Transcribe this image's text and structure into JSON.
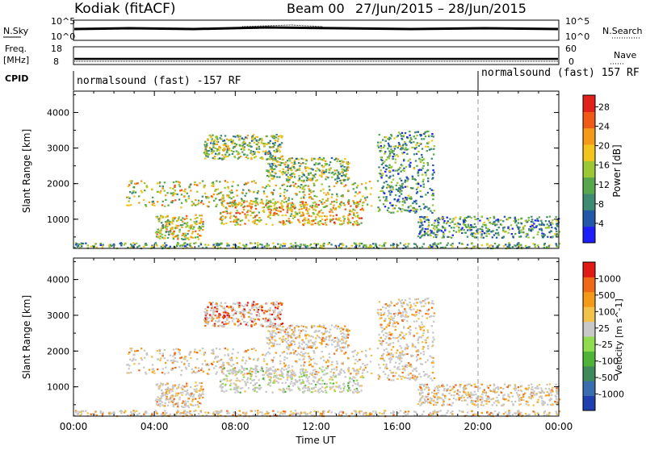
{
  "header": {
    "station": "Kodiak (fitACF)",
    "beam": "Beam 00",
    "date_range": "27/Jun/2015 – 28/Jun/2015"
  },
  "top_panels": {
    "nsky_label": "N.Sky",
    "nsky_ticks": [
      "10^5",
      "10^0"
    ],
    "nsearch_label": "N.Search",
    "nsearch_ticks": [
      "10^5",
      "10^0"
    ],
    "freq_label_1": "Freq.",
    "freq_label_2": "[MHz]",
    "freq_ticks": [
      "18",
      "8"
    ],
    "nave_label": "Nave",
    "nave_ticks": [
      "60",
      "0"
    ],
    "cpid_label": "CPID",
    "cpid_segments": [
      {
        "text": "normalsound (fast) -157 RF",
        "start_hour": 0
      },
      {
        "text": "normalsound (fast) 157 RF",
        "start_hour": 20
      }
    ]
  },
  "chart_data": [
    {
      "type": "heatmap",
      "title": "",
      "xlabel": "Time UT",
      "ylabel": "Slant Range [km]",
      "x_ticks": [
        "00:00",
        "04:00",
        "08:00",
        "12:00",
        "16:00",
        "20:00",
        "00:00"
      ],
      "xlim_hours": [
        0,
        24
      ],
      "ylim_km": [
        180,
        4600
      ],
      "y_ticks": [
        1000,
        2000,
        3000,
        4000
      ],
      "colorbar": {
        "label": "Power [dB]",
        "ticks": [
          "4",
          "8",
          "12",
          "16",
          "20",
          "24",
          "28"
        ],
        "range": [
          0,
          30
        ],
        "colors": [
          "#1e1efa",
          "#2457a8",
          "#3f8a72",
          "#58a64e",
          "#9bc833",
          "#f2c51e",
          "#f39a1b",
          "#ef5a17",
          "#e0201a"
        ]
      },
      "scatter_regions": [
        {
          "t0": 2.6,
          "t1": 14.7,
          "r0": 1350,
          "r1": 2100,
          "level": 0.55
        },
        {
          "t0": 7.2,
          "t1": 14.3,
          "r0": 850,
          "r1": 1550,
          "level": 0.65
        },
        {
          "t0": 6.4,
          "t1": 10.3,
          "r0": 2700,
          "r1": 3400,
          "level": 0.45
        },
        {
          "t0": 9.5,
          "t1": 13.6,
          "r0": 2100,
          "r1": 2750,
          "level": 0.45
        },
        {
          "t0": 4.0,
          "t1": 6.4,
          "r0": 450,
          "r1": 1150,
          "level": 0.55
        },
        {
          "t0": 15.0,
          "t1": 17.8,
          "r0": 1200,
          "r1": 3500,
          "level": 0.3
        },
        {
          "t0": 17.0,
          "t1": 24.0,
          "r0": 500,
          "r1": 1100,
          "level": 0.3
        },
        {
          "t0": 0.0,
          "t1": 24.0,
          "r0": 200,
          "r1": 360,
          "level": 0.35
        }
      ]
    },
    {
      "type": "heatmap",
      "title": "",
      "xlabel": "Time UT",
      "ylabel": "Slant Range [km]",
      "x_ticks": [
        "00:00",
        "04:00",
        "08:00",
        "12:00",
        "16:00",
        "20:00",
        "00:00"
      ],
      "xlim_hours": [
        0,
        24
      ],
      "ylim_km": [
        180,
        4600
      ],
      "y_ticks": [
        1000,
        2000,
        3000,
        4000
      ],
      "colorbar": {
        "label": "Velocity [m s^-1]",
        "ticks": [
          "1000",
          "500",
          "100",
          "25",
          "-25",
          "-100",
          "-500",
          "-1000"
        ],
        "range": [
          -1000,
          1000
        ],
        "colors": [
          "#1f3fae",
          "#3a6cb0",
          "#3f8a5a",
          "#4fb33a",
          "#8fdc50",
          "#c8c8c8",
          "#f2c24a",
          "#f39a1b",
          "#ef6a17",
          "#e01a14"
        ]
      },
      "scatter_regions": [
        {
          "t0": 2.6,
          "t1": 14.7,
          "r0": 1350,
          "r1": 2100,
          "level": 0.5
        },
        {
          "t0": 7.2,
          "t1": 14.3,
          "r0": 850,
          "r1": 1550,
          "level": 0.3
        },
        {
          "t0": 6.4,
          "t1": 10.3,
          "r0": 2700,
          "r1": 3400,
          "level": 0.7
        },
        {
          "t0": 9.5,
          "t1": 13.6,
          "r0": 2100,
          "r1": 2750,
          "level": 0.5
        },
        {
          "t0": 4.0,
          "t1": 6.4,
          "r0": 450,
          "r1": 1150,
          "level": 0.5
        },
        {
          "t0": 15.0,
          "t1": 17.8,
          "r0": 1200,
          "r1": 3500,
          "level": 0.5
        },
        {
          "t0": 17.0,
          "t1": 24.0,
          "r0": 500,
          "r1": 1100,
          "level": 0.5
        },
        {
          "t0": 0.0,
          "t1": 24.0,
          "r0": 200,
          "r1": 360,
          "level": 0.5
        }
      ]
    }
  ]
}
